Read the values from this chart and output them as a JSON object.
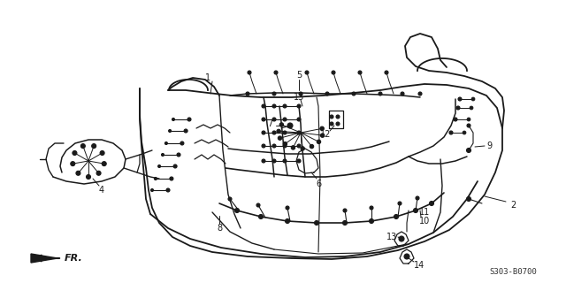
{
  "bg_color": "#ffffff",
  "fig_width": 6.4,
  "fig_height": 3.2,
  "dpi": 100,
  "diagram_code": "S303-B0700",
  "line_color": "#1a1a1a",
  "label_fontsize": 7.0,
  "code_fontsize": 6.5
}
